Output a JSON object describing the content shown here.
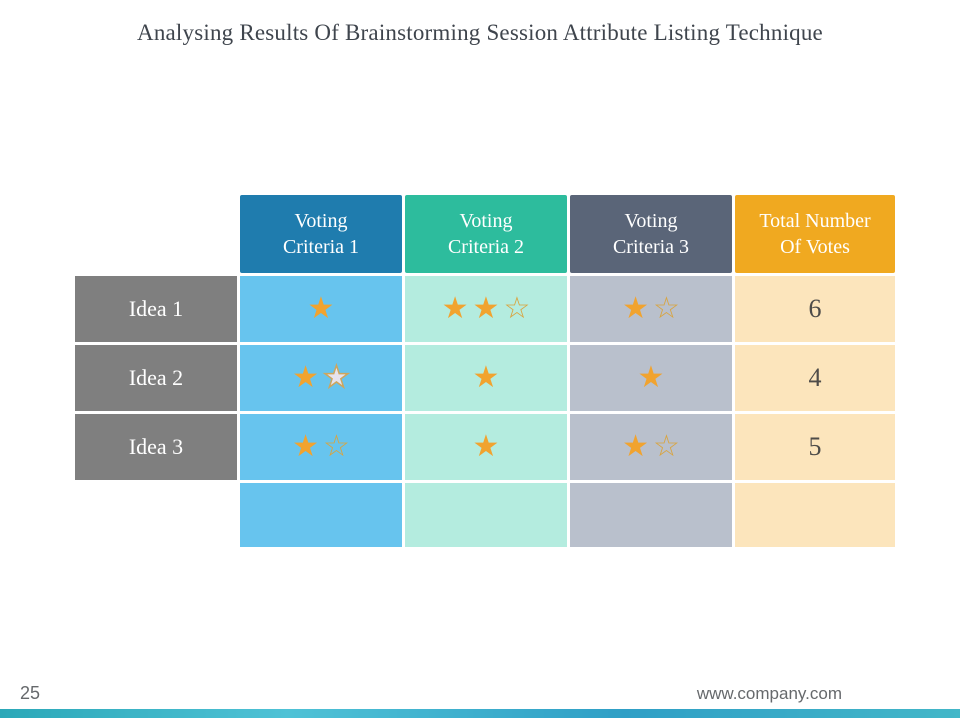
{
  "title": "Analysing Results Of Brainstorming Session Attribute Listing Technique",
  "colors": {
    "header1": "#1f7cae",
    "header2": "#2dbc9d",
    "header3": "#5a6578",
    "header4": "#f0a920",
    "body1": "#67c4ee",
    "body2": "#b4ecdf",
    "body3": "#b9c0cc",
    "body4": "#fce5bc",
    "label_bg": "#7f7f7f",
    "star": "#f1a32f"
  },
  "table": {
    "headers": [
      "Voting\nCriteria 1",
      "Voting\nCriteria 2",
      "Voting\nCriteria 3",
      "Total Number\nOf Votes"
    ],
    "star_legend": {
      "filled": "filled-star-icon",
      "outline": "outline-star-icon",
      "light": "light-star-icon"
    },
    "rows": [
      {
        "label": "Idea 1",
        "ratings": [
          [
            "filled"
          ],
          [
            "filled",
            "filled",
            "outline"
          ],
          [
            "filled",
            "outline"
          ]
        ],
        "total": "6"
      },
      {
        "label": "Idea 2",
        "ratings": [
          [
            "filled",
            "light"
          ],
          [
            "filled"
          ],
          [
            "filled"
          ]
        ],
        "total": "4"
      },
      {
        "label": "Idea 3",
        "ratings": [
          [
            "filled",
            "outline"
          ],
          [
            "filled"
          ],
          [
            "filled",
            "outline"
          ]
        ],
        "total": "5"
      },
      {
        "label": "",
        "ratings": [
          [],
          [],
          []
        ],
        "total": ""
      }
    ]
  },
  "footer": {
    "page_number": "25",
    "website": "www.company.com"
  }
}
